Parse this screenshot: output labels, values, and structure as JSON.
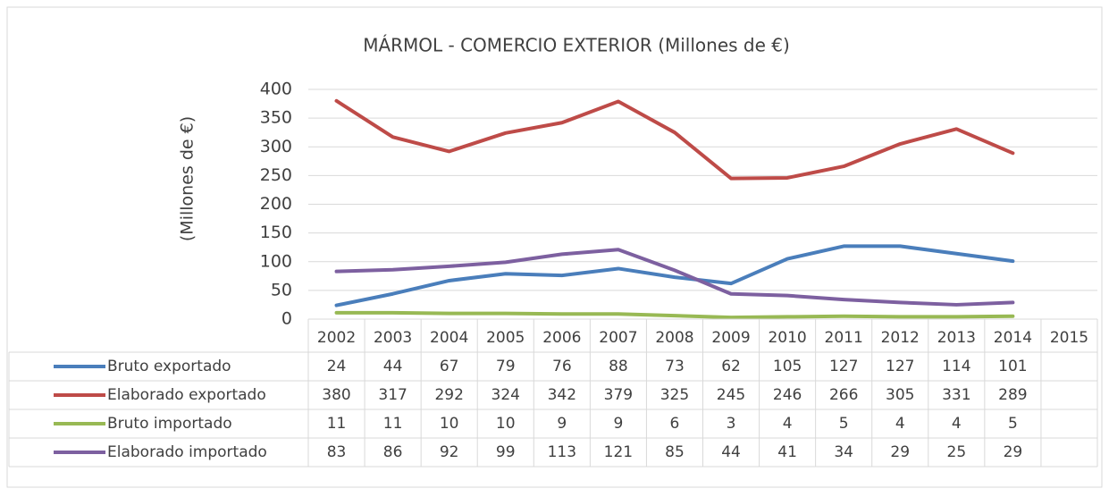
{
  "chart_data": {
    "type": "line",
    "title": "MÁRMOL - COMERCIO EXTERIOR (Millones de €)",
    "y_label": "(Millones de €)",
    "categories": [
      "2002",
      "2003",
      "2004",
      "2005",
      "2006",
      "2007",
      "2008",
      "2009",
      "2010",
      "2011",
      "2012",
      "2013",
      "2014",
      "2015"
    ],
    "series": [
      {
        "name": "Bruto exportado",
        "color": "#4a7ebb",
        "values": [
          24,
          44,
          67,
          79,
          76,
          88,
          73,
          62,
          105,
          127,
          127,
          114,
          101,
          null
        ]
      },
      {
        "name": "Elaborado exportado",
        "color": "#be4b48",
        "values": [
          380,
          317,
          292,
          324,
          342,
          379,
          325,
          245,
          246,
          266,
          305,
          331,
          289,
          null
        ]
      },
      {
        "name": "Bruto importado",
        "color": "#98b954",
        "values": [
          11,
          11,
          10,
          10,
          9,
          9,
          6,
          3,
          4,
          5,
          4,
          4,
          5,
          null
        ]
      },
      {
        "name": "Elaborado importado",
        "color": "#7d60a0",
        "values": [
          83,
          86,
          92,
          99,
          113,
          121,
          85,
          44,
          41,
          34,
          29,
          25,
          29,
          null
        ]
      }
    ],
    "ylim": [
      0,
      400
    ],
    "yticks": [
      0,
      50,
      100,
      150,
      200,
      250,
      300,
      350,
      400
    ],
    "grid": true
  }
}
